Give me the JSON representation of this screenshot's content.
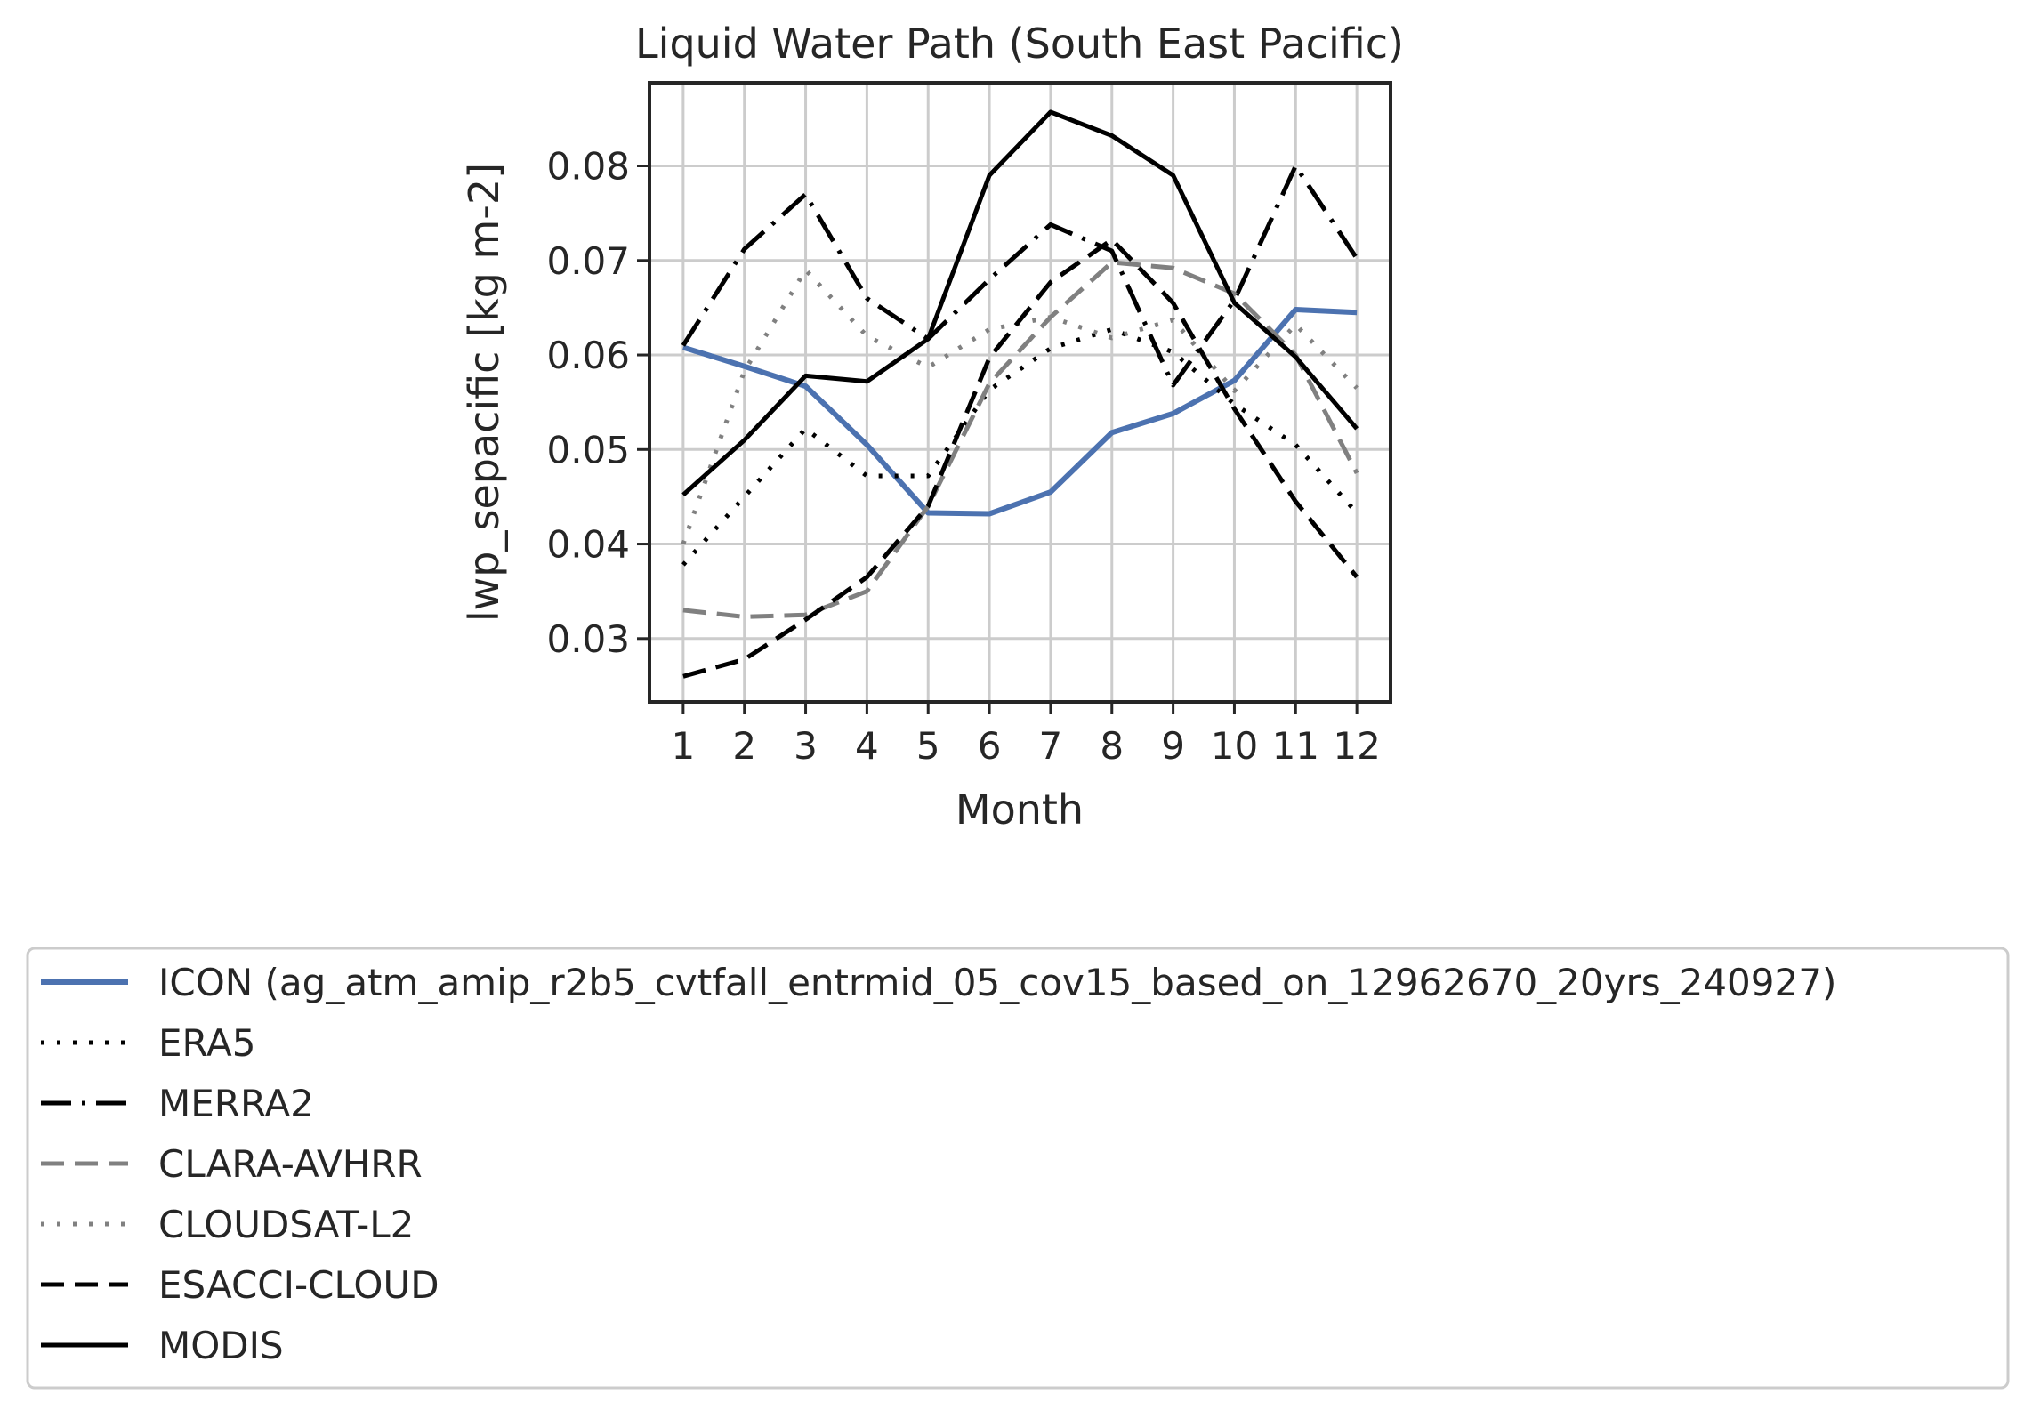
{
  "chart_data": {
    "type": "line",
    "title": "Liquid Water Path (South East Pacific)",
    "xlabel": "Month",
    "ylabel": "lwp_sepacific [kg m-2]",
    "x": [
      1,
      2,
      3,
      4,
      5,
      6,
      7,
      8,
      9,
      10,
      11,
      12
    ],
    "x_ticks": [
      "1",
      "2",
      "3",
      "4",
      "5",
      "6",
      "7",
      "8",
      "9",
      "10",
      "11",
      "12"
    ],
    "y_ticks": [
      "0.03",
      "0.04",
      "0.05",
      "0.06",
      "0.07",
      "0.08"
    ],
    "xlim": [
      0.45,
      12.55
    ],
    "ylim": [
      0.0233,
      0.0888
    ],
    "grid": true,
    "legend_placement": "below",
    "series": [
      {
        "name": "ICON (ag_atm_amip_r2b5_cvtfall_entrmid_05_cov15_based_on_12962670_20yrs_240927)",
        "style": "solid",
        "color": "#4c72b0",
        "values": [
          0.0608,
          0.0588,
          0.0567,
          0.0505,
          0.0433,
          0.0432,
          0.0455,
          0.0518,
          0.0538,
          0.0573,
          0.0648,
          0.0645
        ]
      },
      {
        "name": "ERA5",
        "style": "dotted",
        "color": "#000000",
        "values": [
          0.0378,
          0.045,
          0.0522,
          0.0472,
          0.0472,
          0.0563,
          0.0607,
          0.0627,
          0.0603,
          0.0548,
          0.0505,
          0.0433
        ]
      },
      {
        "name": "MERRA2",
        "style": "dashdot",
        "color": "#000000",
        "values": [
          0.061,
          0.0712,
          0.077,
          0.066,
          0.0617,
          0.068,
          0.0738,
          0.071,
          0.0568,
          0.0658,
          0.08,
          0.0702
        ]
      },
      {
        "name": "CLARA-AVHRR",
        "style": "dashed",
        "color": "#808080",
        "values": [
          0.033,
          0.0323,
          0.0325,
          0.035,
          0.044,
          0.057,
          0.064,
          0.0698,
          0.0692,
          0.0665,
          0.06,
          0.0475
        ]
      },
      {
        "name": "CLOUDSAT-L2",
        "style": "dotted",
        "color": "#808080",
        "values": [
          0.04,
          0.0583,
          0.069,
          0.062,
          0.0587,
          0.0627,
          0.064,
          0.0618,
          0.0637,
          0.0562,
          0.0632,
          0.0565
        ]
      },
      {
        "name": "ESACCI-CLOUD",
        "style": "dashed",
        "color": "#000000",
        "values": [
          0.026,
          0.0278,
          0.032,
          0.0365,
          0.044,
          0.0597,
          0.0677,
          0.0722,
          0.0655,
          0.0543,
          0.0445,
          0.0365
        ]
      },
      {
        "name": "MODIS",
        "style": "solid",
        "color": "#000000",
        "values": [
          0.0452,
          0.051,
          0.0578,
          0.0572,
          0.0617,
          0.079,
          0.0857,
          0.0832,
          0.079,
          0.0655,
          0.0598,
          0.0522
        ]
      }
    ]
  }
}
